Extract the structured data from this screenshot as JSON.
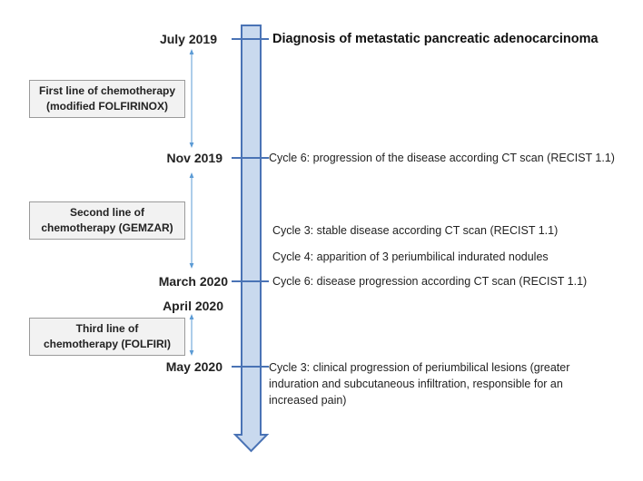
{
  "timeline": {
    "colors": {
      "fill": "#c9d9ee",
      "stroke": "#4a73b5",
      "tick": "#4a73b5",
      "arrow": "#5b9bd5"
    }
  },
  "dates": {
    "july_2019": "July 2019",
    "nov_2019": "Nov 2019",
    "march_2020": "March 2020",
    "april_2020": "April 2020",
    "may_2020": "May 2020"
  },
  "events": {
    "diagnosis": "Diagnosis of metastatic pancreatic adenocarcinoma",
    "nov_cycle6": "Cycle 6: progression of the disease according CT scan (RECIST 1.1)",
    "gem_cycle3": "Cycle 3: stable disease according CT scan (RECIST 1.1)",
    "gem_cycle4": "Cycle 4: apparition of 3 periumbilical indurated nodules",
    "march_cycle6": "Cycle 6: disease progression according CT scan (RECIST 1.1)",
    "may_cycle3": "Cycle 3: clinical progression of periumbilical lesions (greater induration and subcutaneous infiltration, responsible for an increased pain)"
  },
  "lines": {
    "first": {
      "line1": "First line of chemotherapy",
      "line2": "(modified FOLFIRINOX)"
    },
    "second": {
      "line1": "Second line of",
      "line2": "chemotherapy (GEMZAR)"
    },
    "third": {
      "line1": "Third line of",
      "line2": "chemotherapy (FOLFIRI)"
    }
  }
}
